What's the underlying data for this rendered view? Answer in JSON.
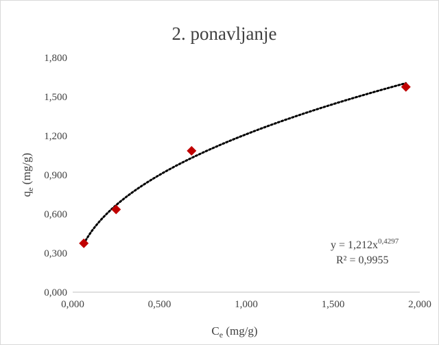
{
  "chart_data": {
    "type": "scatter",
    "title": "2. ponavljanje",
    "xlabel": {
      "main": "C",
      "sub": "e",
      "unit": " (mg/g)"
    },
    "ylabel": {
      "main": "q",
      "sub": "e",
      "unit": " (mg/g)"
    },
    "xlim": [
      0,
      2
    ],
    "ylim": [
      0,
      1.8
    ],
    "x_ticks": [
      0,
      0.5,
      1,
      1.5,
      2
    ],
    "x_tick_labels": [
      "0,000",
      "0,500",
      "1,000",
      "1,500",
      "2,000"
    ],
    "y_ticks": [
      0,
      0.3,
      0.6,
      0.9,
      1.2,
      1.5,
      1.8
    ],
    "y_tick_labels": [
      "0,000",
      "0,300",
      "0,600",
      "0,900",
      "1,200",
      "1,500",
      "1,800"
    ],
    "grid": false,
    "series": [
      {
        "marker": "diamond",
        "color": "#c00000",
        "points": [
          {
            "x": 0.064,
            "y": 0.375
          },
          {
            "x": 0.25,
            "y": 0.635
          },
          {
            "x": 0.685,
            "y": 1.085
          },
          {
            "x": 1.92,
            "y": 1.575
          }
        ]
      }
    ],
    "trendline": {
      "type": "power",
      "coef": 1.212,
      "exponent": 0.4297,
      "x_range": [
        0.064,
        1.92
      ],
      "style": "dotted",
      "color": "#000000"
    },
    "annotation": {
      "eq_prefix": "y = 1,212x",
      "eq_exponent": "0,4297",
      "r2": "R² = 0,9955"
    }
  }
}
